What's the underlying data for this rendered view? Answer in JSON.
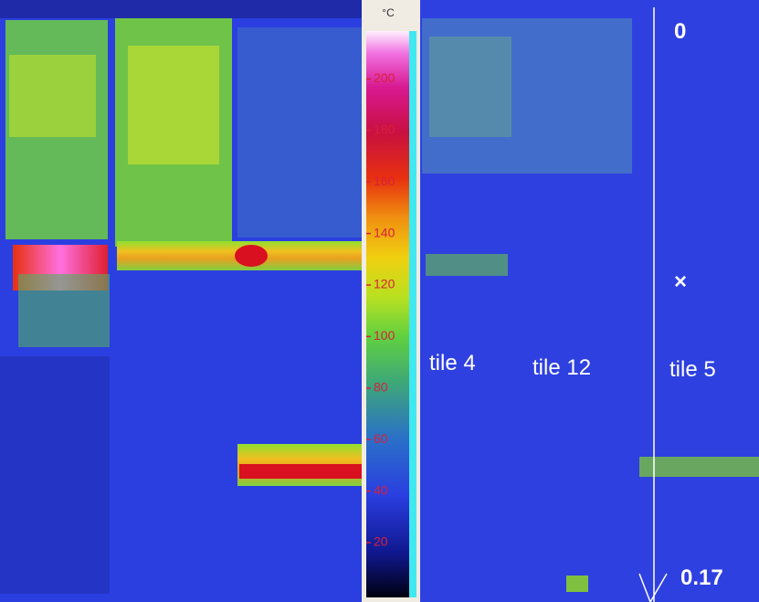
{
  "colorbar": {
    "unit": "°C",
    "ticks": [
      20,
      40,
      60,
      80,
      100,
      120,
      140,
      160,
      180,
      200
    ]
  },
  "labels": {
    "tile_left": "tile 4",
    "tile_middle": "tile 12",
    "tile_right": "tile 5",
    "line_top": "0",
    "marker": "×",
    "line_bottom": "0.17"
  }
}
